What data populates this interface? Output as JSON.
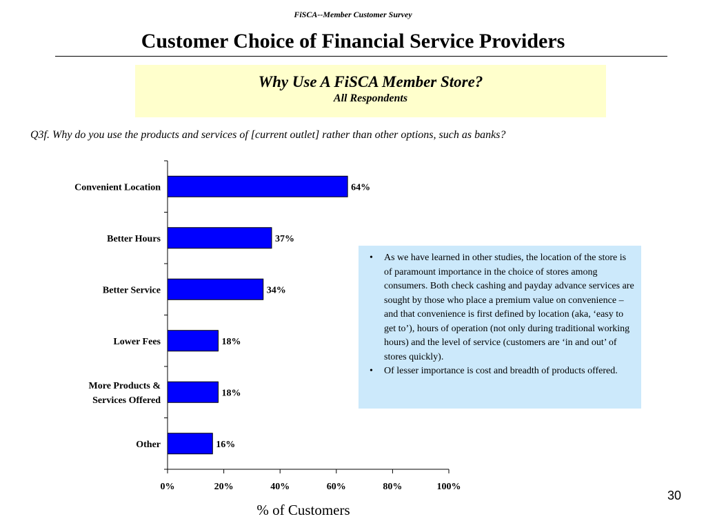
{
  "header": {
    "note": "FiSCA--Member Customer Survey",
    "title": "Customer Choice of Financial Service Providers"
  },
  "subtitle": {
    "main": "Why Use A FiSCA Member Store?",
    "sub": "All Respondents"
  },
  "question": "Q3f.  Why do you use the products and services of [current outlet] rather than other options, such as banks?",
  "chart_data": {
    "type": "bar",
    "orientation": "horizontal",
    "categories": [
      [
        "Convenient Location"
      ],
      [
        "Better Hours"
      ],
      [
        "Better Service"
      ],
      [
        "Lower Fees"
      ],
      [
        "More Products &",
        "Services Offered"
      ],
      [
        "Other"
      ]
    ],
    "values": [
      64,
      37,
      34,
      18,
      18,
      16
    ],
    "value_labels": [
      "64%",
      "37%",
      "34%",
      "18%",
      "18%",
      "16%"
    ],
    "xlim": [
      0,
      100
    ],
    "xticks": [
      0,
      20,
      40,
      60,
      80,
      100
    ],
    "xtick_labels": [
      "0%",
      "20%",
      "40%",
      "60%",
      "80%",
      "100%"
    ],
    "xlabel": "% of Customers",
    "bar_color": "#0000ff",
    "grid": false
  },
  "callout": {
    "bullets": [
      "As we have learned in other studies, the location of the store is of paramount importance in the choice of stores among consumers.  Both check cashing and payday advance services are sought by those who place a premium value on convenience – and that convenience is first defined by location (aka, ‘easy to get to’), hours of operation (not only during traditional working hours) and the level of service (customers are ‘in and out’ of stores quickly).",
      "Of lesser importance is cost and breadth of products offered."
    ],
    "background": "#cce9fb"
  },
  "page_number": "30"
}
